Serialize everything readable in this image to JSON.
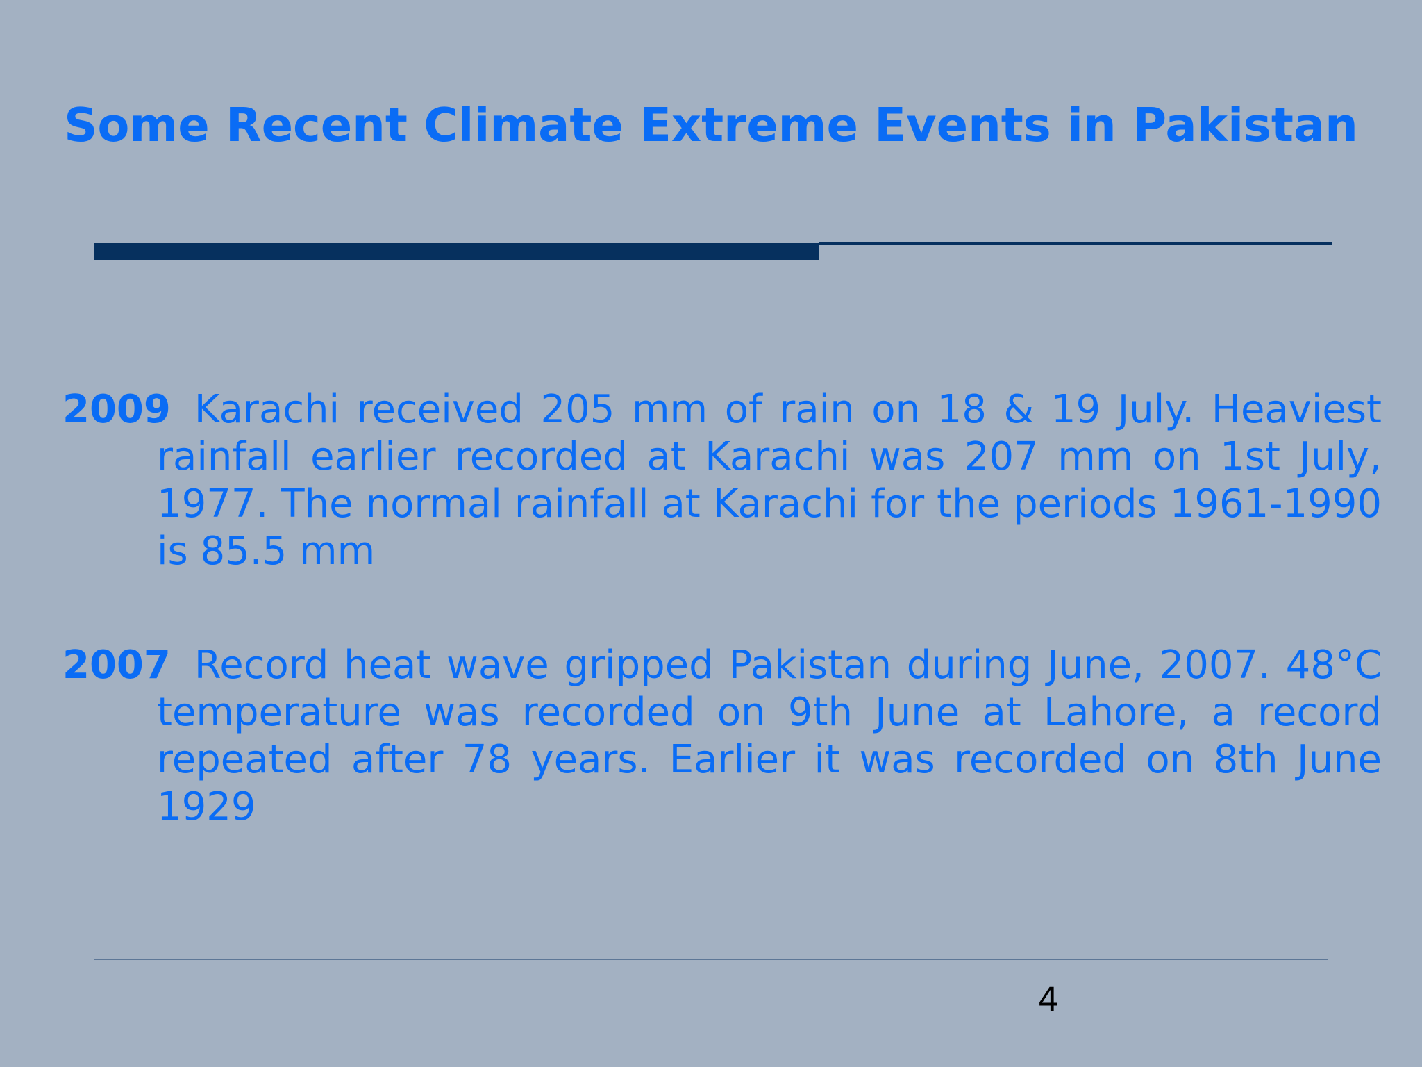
{
  "slide": {
    "title": "Some Recent Climate Extreme Events in Pakistan",
    "events": [
      {
        "year": "2009",
        "text": "Karachi received 205 mm of rain on 18 & 19 July. Heaviest rainfall earlier recorded at Karachi was 207 mm on 1st July,  1977. The normal rainfall at Karachi for the periods 1961-1990 is 85.5 mm"
      },
      {
        "year": "2007",
        "text": "Record heat wave gripped Pakistan during June, 2007. 48°C temperature was recorded on 9th June at Lahore, a record repeated after 78 years. Earlier it was recorded on 8th June 1929"
      }
    ],
    "page_number": "4"
  },
  "colors": {
    "background": "#a3b1c2",
    "text_accent": "#0a6cf5",
    "rule": "#06305e",
    "page_number": "#000000"
  }
}
